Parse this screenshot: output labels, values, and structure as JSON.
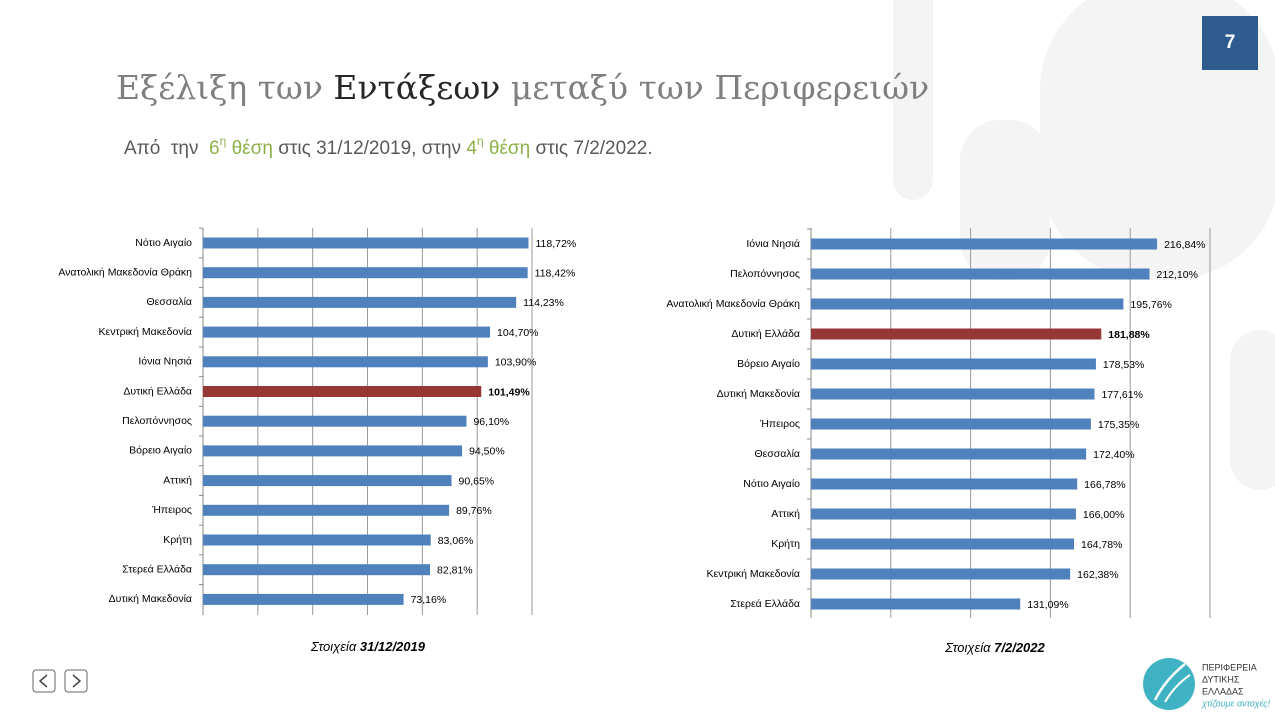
{
  "slide": {
    "page_number": "7",
    "title": [
      "Εξέλιξη των ",
      "Εντάξεων",
      " μεταξύ των Περιφερειών"
    ],
    "subtitle": [
      "Από  την  ",
      "6",
      "η",
      " θέση",
      " στις 31/12/2019, στην ",
      "4",
      "η",
      " θέση",
      " στις 7/2/2022."
    ],
    "logo": [
      "ΠΕΡΙΦΕΡΕΙΑ",
      "ΔΥΤΙΚΗΣ",
      "ΕΛΛΑΔΑΣ",
      "χτίζουμε αντοχές!"
    ]
  },
  "chart_data": [
    {
      "type": "hbar",
      "caption": [
        "Στοιχεία ",
        "31/12/2019"
      ],
      "categories": [
        "Νότιο Αιγαίο",
        "Ανατολική Μακεδονία Θράκη",
        "Θεσσαλία",
        "Κεντρική Μακεδονία",
        "Ιόνια Νησιά",
        "Δυτική Ελλάδα",
        "Πελοπόννησος",
        "Βόρειο Αιγαίο",
        "Αττική",
        "Ήπειρος",
        "Κρήτη",
        "Στερεά Ελλάδα",
        "Δυτική Μακεδονία"
      ],
      "values": [
        118.72,
        118.42,
        114.23,
        104.7,
        103.9,
        101.49,
        96.1,
        94.5,
        90.65,
        89.76,
        83.06,
        82.81,
        73.16
      ],
      "value_labels": [
        "118,72%",
        "118,42%",
        "114,23%",
        "104,70%",
        "103,90%",
        "101,49%",
        "96,10%",
        "94,50%",
        "90,65%",
        "89,76%",
        "83,06%",
        "82,81%",
        "73,16%"
      ],
      "color": "#4f81bd",
      "highlight": 5,
      "highlight_color": "#953735",
      "xlim": [
        0,
        120
      ],
      "xticks": [
        0,
        20,
        40,
        60,
        80,
        100,
        120
      ],
      "grid": true
    },
    {
      "type": "hbar",
      "caption": [
        "Στοιχεία ",
        "7/2/2022"
      ],
      "categories": [
        "Ιόνια Νησιά",
        "Πελοπόννησος",
        "Ανατολική Μακεδονία Θράκη",
        "Δυτική Ελλάδα",
        "Βόρειο Αιγαίο",
        "Δυτική Μακεδονία",
        "Ήπειρος",
        "Θεσσαλία",
        "Νότιο Αιγαίο",
        "Αττική",
        "Κρήτη",
        "Κεντρική Μακεδονία",
        "Στερεά Ελλάδα"
      ],
      "values": [
        216.84,
        212.1,
        195.76,
        181.88,
        178.53,
        177.61,
        175.35,
        172.4,
        166.78,
        166.0,
        164.78,
        162.38,
        131.09
      ],
      "value_labels": [
        "216,84%",
        "212,10%",
        "195,76%",
        "181,88%",
        "178,53%",
        "177,61%",
        "175,35%",
        "172,40%",
        "166,78%",
        "166,00%",
        "164,78%",
        "162,38%",
        "131,09%"
      ],
      "color": "#4f81bd",
      "highlight": 3,
      "highlight_color": "#953735",
      "xlim": [
        0,
        250
      ],
      "xticks": [
        0,
        50,
        100,
        150,
        200,
        250
      ],
      "grid": true
    }
  ]
}
